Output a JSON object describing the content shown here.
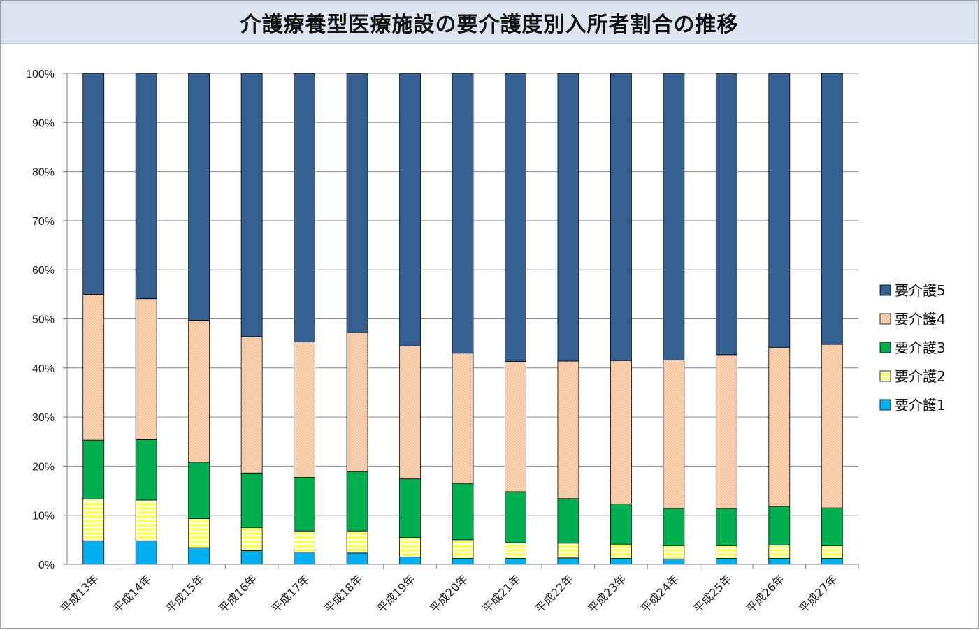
{
  "title": "介護療養型医療施設の要介護度別入所者割合の推移",
  "chart_data": {
    "type": "bar",
    "stacked": true,
    "title": "介護療養型医療施設の要介護度別入所者割合の推移",
    "xlabel": "",
    "ylabel": "",
    "ylim": [
      0,
      100
    ],
    "y_ticks": [
      "0%",
      "10%",
      "20%",
      "30%",
      "40%",
      "50%",
      "60%",
      "70%",
      "80%",
      "90%",
      "100%"
    ],
    "grid": true,
    "legend_position": "right",
    "categories": [
      "平成13年",
      "平成14年",
      "平成15年",
      "平成16年",
      "平成17年",
      "平成18年",
      "平成19年",
      "平成20年",
      "平成21年",
      "平成22年",
      "平成23年",
      "平成24年",
      "平成25年",
      "平成26年",
      "平成27年"
    ],
    "series": [
      {
        "name": "要介護1",
        "color": "#00b0f0",
        "values": [
          4.8,
          4.8,
          3.4,
          2.8,
          2.5,
          2.3,
          1.5,
          1.2,
          1.2,
          1.3,
          1.2,
          1.1,
          1.2,
          1.2,
          1.2
        ]
      },
      {
        "name": "要介護2",
        "color": "#ffff66",
        "values": [
          8.5,
          8.3,
          5.9,
          4.7,
          4.3,
          4.5,
          4.0,
          3.8,
          3.2,
          3.0,
          2.9,
          2.7,
          2.6,
          2.7,
          2.6
        ]
      },
      {
        "name": "要介護3",
        "color": "#00b050",
        "values": [
          12.0,
          12.3,
          11.5,
          11.1,
          10.9,
          12.1,
          11.9,
          11.5,
          10.4,
          9.1,
          8.2,
          7.6,
          7.6,
          7.9,
          7.7
        ]
      },
      {
        "name": "要介護4",
        "color": "#fbd4b4",
        "values": [
          29.7,
          28.7,
          28.9,
          27.8,
          27.6,
          28.3,
          27.1,
          26.5,
          26.5,
          28.0,
          29.2,
          30.2,
          31.3,
          32.4,
          33.3
        ]
      },
      {
        "name": "要介護5",
        "color": "#376092",
        "values": [
          45.0,
          45.9,
          50.3,
          53.6,
          54.7,
          52.8,
          55.5,
          57.0,
          58.7,
          58.6,
          58.5,
          58.4,
          57.3,
          55.8,
          55.2
        ]
      }
    ],
    "legend_order": [
      "要介護5",
      "要介護4",
      "要介護3",
      "要介護2",
      "要介護1"
    ]
  }
}
